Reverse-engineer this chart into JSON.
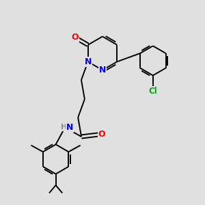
{
  "background_color": "#e0e0e0",
  "bond_color": "#000000",
  "atom_colors": {
    "N": "#0000ff",
    "O": "#ff0000",
    "Cl": "#00aa00",
    "H": "#888888",
    "C": "#000000"
  },
  "figsize": [
    3.0,
    3.0
  ],
  "dpi": 100
}
